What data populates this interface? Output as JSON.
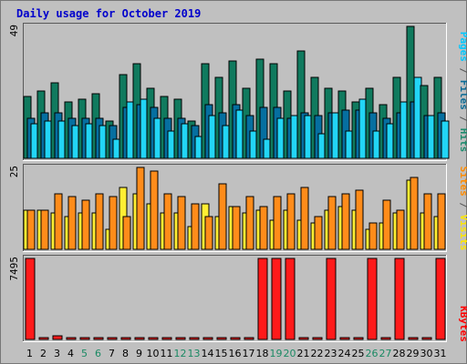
{
  "title": "Daily usage for October 2019",
  "right_labels": {
    "hits_group": [
      {
        "text": "Pages",
        "color": "#00c8ff"
      },
      {
        "text": " / ",
        "color": "#555555"
      },
      {
        "text": "Files",
        "color": "#0a6b96"
      },
      {
        "text": " / ",
        "color": "#555555"
      },
      {
        "text": "Hits",
        "color": "#1e8c6e"
      }
    ],
    "sites_group": [
      {
        "text": "Sites",
        "color": "#ff8c00"
      },
      {
        "text": " / ",
        "color": "#555555"
      },
      {
        "text": "Visits",
        "color": "#ffe600"
      }
    ],
    "kbytes_group": [
      {
        "text": "KBytes",
        "color": "#ff0000"
      }
    ]
  },
  "colors": {
    "background": "#c0c0c0",
    "hits": "#107a5e",
    "files": "#066fa0",
    "pages": "#22d5f5",
    "visits": "#ffee33",
    "sites": "#ff8c1a",
    "kbytes": "#ff1a1a",
    "title": "#0000cc",
    "weekday_label": "#000000",
    "weekend_label": "#1b8a64"
  },
  "chart_data": [
    {
      "type": "bar",
      "name": "Hits / Files / Pages",
      "scale_max_label": "49",
      "ylim": [
        0,
        49
      ],
      "categories": [
        "1",
        "2",
        "3",
        "4",
        "5",
        "6",
        "7",
        "8",
        "9",
        "10",
        "11",
        "12",
        "13",
        "14",
        "15",
        "16",
        "17",
        "18",
        "19",
        "20",
        "21",
        "22",
        "23",
        "24",
        "25",
        "26",
        "27",
        "28",
        "29",
        "30",
        "31"
      ],
      "series": [
        {
          "name": "Hits",
          "values": [
            23,
            25,
            28,
            21,
            22,
            24,
            14,
            31,
            35,
            26,
            23,
            22,
            14,
            35,
            30,
            36,
            26,
            37,
            35,
            25,
            40,
            30,
            26,
            25,
            21,
            26,
            20,
            30,
            49,
            27,
            30
          ]
        },
        {
          "name": "Files",
          "values": [
            15,
            17,
            17,
            15,
            15,
            15,
            12,
            19,
            20,
            19,
            15,
            15,
            12,
            20,
            17,
            20,
            16,
            19,
            19,
            15,
            17,
            16,
            17,
            18,
            18,
            17,
            15,
            17,
            21,
            16,
            17
          ]
        },
        {
          "name": "Pages",
          "values": [
            13,
            14,
            14,
            12,
            13,
            12,
            7,
            21,
            22,
            15,
            10,
            13,
            8,
            16,
            12,
            18,
            10,
            7,
            15,
            16,
            16,
            9,
            17,
            10,
            22,
            10,
            13,
            21,
            30,
            16,
            14
          ]
        }
      ]
    },
    {
      "type": "bar",
      "name": "Sites / Visits",
      "scale_max_label": "25",
      "ylim": [
        0,
        25
      ],
      "categories": [
        "1",
        "2",
        "3",
        "4",
        "5",
        "6",
        "7",
        "8",
        "9",
        "10",
        "11",
        "12",
        "13",
        "14",
        "15",
        "16",
        "17",
        "18",
        "19",
        "20",
        "21",
        "22",
        "23",
        "24",
        "25",
        "26",
        "27",
        "28",
        "29",
        "30",
        "31"
      ],
      "series": [
        {
          "name": "Visits",
          "values": [
            12,
            12,
            11,
            10,
            11,
            11,
            6,
            19,
            17,
            14,
            11,
            11,
            7,
            14,
            10,
            13,
            11,
            12,
            9,
            12,
            9,
            8,
            12,
            13,
            12,
            6,
            8,
            11,
            21,
            11,
            10
          ]
        },
        {
          "name": "Sites",
          "values": [
            12,
            12,
            17,
            16,
            15,
            17,
            16,
            10,
            25,
            24,
            17,
            16,
            14,
            10,
            20,
            13,
            16,
            13,
            16,
            17,
            19,
            10,
            16,
            17,
            18,
            8,
            15,
            12,
            22,
            17,
            17
          ]
        }
      ]
    },
    {
      "type": "bar",
      "name": "KBytes",
      "scale_max_label": "7495",
      "ylim": [
        0,
        7495
      ],
      "categories": [
        "1",
        "2",
        "3",
        "4",
        "5",
        "6",
        "7",
        "8",
        "9",
        "10",
        "11",
        "12",
        "13",
        "14",
        "15",
        "16",
        "17",
        "18",
        "19",
        "20",
        "21",
        "22",
        "23",
        "24",
        "25",
        "26",
        "27",
        "28",
        "29",
        "30",
        "31"
      ],
      "series": [
        {
          "name": "KBytes",
          "values": [
            7495,
            60,
            300,
            60,
            60,
            60,
            60,
            60,
            60,
            60,
            200,
            60,
            60,
            60,
            60,
            200,
            60,
            7495,
            7495,
            7495,
            60,
            60,
            7495,
            60,
            60,
            7495,
            60,
            7495,
            60,
            60,
            7495
          ]
        }
      ]
    }
  ],
  "x_labels": [
    {
      "text": "1",
      "weekend": false
    },
    {
      "text": "2",
      "weekend": false
    },
    {
      "text": "3",
      "weekend": false
    },
    {
      "text": "4",
      "weekend": false
    },
    {
      "text": "5",
      "weekend": true
    },
    {
      "text": "6",
      "weekend": true
    },
    {
      "text": "7",
      "weekend": false
    },
    {
      "text": "8",
      "weekend": false
    },
    {
      "text": "9",
      "weekend": false
    },
    {
      "text": "10",
      "weekend": false
    },
    {
      "text": "11",
      "weekend": false
    },
    {
      "text": "12",
      "weekend": true
    },
    {
      "text": "13",
      "weekend": true
    },
    {
      "text": "14",
      "weekend": false
    },
    {
      "text": "15",
      "weekend": false
    },
    {
      "text": "16",
      "weekend": false
    },
    {
      "text": "17",
      "weekend": false
    },
    {
      "text": "18",
      "weekend": false
    },
    {
      "text": "19",
      "weekend": true
    },
    {
      "text": "20",
      "weekend": true
    },
    {
      "text": "21",
      "weekend": false
    },
    {
      "text": "22",
      "weekend": false
    },
    {
      "text": "23",
      "weekend": false
    },
    {
      "text": "24",
      "weekend": false
    },
    {
      "text": "25",
      "weekend": false
    },
    {
      "text": "26",
      "weekend": true
    },
    {
      "text": "27",
      "weekend": true
    },
    {
      "text": "28",
      "weekend": false
    },
    {
      "text": "29",
      "weekend": false
    },
    {
      "text": "30",
      "weekend": false
    },
    {
      "text": "31",
      "weekend": false
    }
  ]
}
